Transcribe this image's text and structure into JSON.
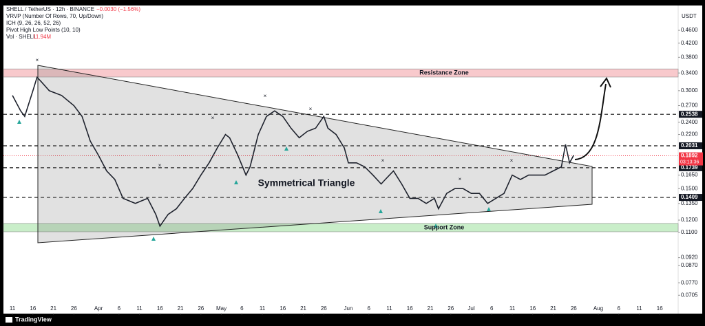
{
  "chart_data": {
    "type": "line",
    "symbol": "SHELL / TetherUS · 12h · BINANCE",
    "change": "−0.0030 (−1.56%)",
    "indicators": [
      "VRVP (Number Of Rows, 70, Up/Down)",
      "ICH (9, 26, 26, 52, 26)",
      "Pivot High Low Points (10, 10)"
    ],
    "volume_label": "Vol · SHELL",
    "volume_value": "11.94M",
    "currency": "USDT",
    "brand": "TradingView",
    "annotation": "Symmetrical Triangle",
    "log_scale": true,
    "color": "#1e222d",
    "x": [
      0,
      2,
      3,
      5,
      6,
      7,
      9,
      12,
      15,
      17,
      19,
      21,
      23,
      25,
      27,
      30,
      33,
      35,
      36,
      38,
      40,
      42,
      44,
      46,
      48,
      50,
      52,
      53,
      55,
      57,
      58,
      60,
      62,
      64,
      66,
      68,
      70,
      72,
      74,
      76,
      77,
      79,
      81,
      82,
      84,
      86,
      88,
      90,
      91,
      93,
      95,
      97,
      99,
      101,
      103,
      104,
      106,
      108,
      110,
      112,
      114,
      116,
      118,
      120,
      122,
      124,
      126,
      128,
      130,
      132,
      134,
      135,
      136,
      137
    ],
    "values": [
      0.29,
      0.26,
      0.25,
      0.3,
      0.33,
      0.32,
      0.3,
      0.29,
      0.27,
      0.25,
      0.21,
      0.19,
      0.17,
      0.16,
      0.14,
      0.135,
      0.14,
      0.125,
      0.115,
      0.125,
      0.13,
      0.14,
      0.15,
      0.165,
      0.18,
      0.2,
      0.22,
      0.215,
      0.19,
      0.165,
      0.175,
      0.22,
      0.25,
      0.26,
      0.25,
      0.23,
      0.215,
      0.225,
      0.23,
      0.25,
      0.23,
      0.22,
      0.2,
      0.18,
      0.18,
      0.175,
      0.165,
      0.155,
      0.16,
      0.17,
      0.155,
      0.14,
      0.14,
      0.135,
      0.14,
      0.13,
      0.145,
      0.15,
      0.15,
      0.145,
      0.145,
      0.135,
      0.14,
      0.145,
      0.165,
      0.16,
      0.165,
      0.165,
      0.165,
      0.17,
      0.175,
      0.205,
      0.18,
      0.19
    ],
    "xlim": [
      -2.2,
      162.5
    ],
    "ylim": [
      0.0622,
      0.543
    ],
    "xticks": [
      {
        "value": 0,
        "label": "11"
      },
      {
        "value": 5,
        "label": "16"
      },
      {
        "value": 10,
        "label": "21"
      },
      {
        "value": 15,
        "label": "26"
      },
      {
        "value": 21,
        "label": "Apr"
      },
      {
        "value": 26,
        "label": "6"
      },
      {
        "value": 31,
        "label": "11"
      },
      {
        "value": 36,
        "label": "16"
      },
      {
        "value": 41,
        "label": "21"
      },
      {
        "value": 46,
        "label": "26"
      },
      {
        "value": 51,
        "label": "May"
      },
      {
        "value": 56,
        "label": "6"
      },
      {
        "value": 61,
        "label": "11"
      },
      {
        "value": 66,
        "label": "16"
      },
      {
        "value": 71,
        "label": "21"
      },
      {
        "value": 76,
        "label": "26"
      },
      {
        "value": 82,
        "label": "Jun"
      },
      {
        "value": 87,
        "label": "6"
      },
      {
        "value": 92,
        "label": "11"
      },
      {
        "value": 97,
        "label": "16"
      },
      {
        "value": 102,
        "label": "21"
      },
      {
        "value": 107,
        "label": "26"
      },
      {
        "value": 112,
        "label": "Jul"
      },
      {
        "value": 117,
        "label": "6"
      },
      {
        "value": 122,
        "label": "11"
      },
      {
        "value": 127,
        "label": "16"
      },
      {
        "value": 132,
        "label": "21"
      },
      {
        "value": 137,
        "label": "26"
      },
      {
        "value": 143,
        "label": "Aug"
      },
      {
        "value": 148,
        "label": "6"
      },
      {
        "value": 153,
        "label": "11"
      },
      {
        "value": 158,
        "label": "16"
      }
    ],
    "yticks": [
      {
        "value": 0.46,
        "label": "0.4600"
      },
      {
        "value": 0.42,
        "label": "0.4200"
      },
      {
        "value": 0.38,
        "label": "0.3800"
      },
      {
        "value": 0.34,
        "label": "0.3400"
      },
      {
        "value": 0.3,
        "label": "0.3000"
      },
      {
        "value": 0.27,
        "label": "0.2700"
      },
      {
        "value": 0.24,
        "label": "0.2400"
      },
      {
        "value": 0.22,
        "label": "0.2200"
      },
      {
        "value": 0.165,
        "label": "0.1650"
      },
      {
        "value": 0.15,
        "label": "0.1500"
      },
      {
        "value": 0.135,
        "label": "0.1350"
      },
      {
        "value": 0.12,
        "label": "0.1200"
      },
      {
        "value": 0.11,
        "label": "0.1100"
      },
      {
        "value": 0.092,
        "label": "0.0920"
      },
      {
        "value": 0.087,
        "label": "0.0870"
      },
      {
        "value": 0.077,
        "label": "0.0770"
      },
      {
        "value": 0.0705,
        "label": "0.0705"
      }
    ],
    "levels": [
      0.2538,
      0.2031,
      0.1739,
      0.1409
    ],
    "last_price": {
      "value": 0.1892,
      "countdown": "03:13:36",
      "color": "#f23645"
    },
    "zones": [
      {
        "name": "Resistance Zone",
        "low": 0.3305,
        "high": 0.35,
        "color": "#f8c9cc"
      },
      {
        "name": "Support Zone",
        "low": 0.1105,
        "high": 0.1172,
        "color": "#c9eec9"
      }
    ]
  }
}
